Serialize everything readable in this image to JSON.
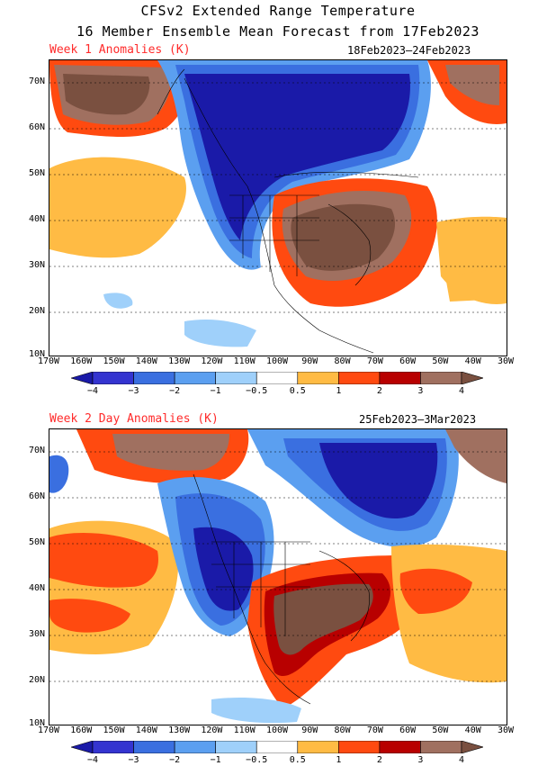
{
  "title": {
    "line1": "CFSv2 Extended Range Temperature",
    "line2": "16 Member Ensemble Mean Forecast from 17Feb2023"
  },
  "panels": [
    {
      "label": "Week 1 Anomalies (K)",
      "dates": "18Feb2023–24Feb2023"
    },
    {
      "label": "Week 2 Day Anomalies (K)",
      "dates": "25Feb2023–3Mar2023"
    }
  ],
  "lat_labels": [
    "70N",
    "60N",
    "50N",
    "40N",
    "30N",
    "20N",
    "10N"
  ],
  "lon_labels": [
    "170W",
    "160W",
    "150W",
    "140W",
    "130W",
    "120W",
    "110W",
    "100W",
    "90W",
    "80W",
    "70W",
    "60W",
    "50W",
    "40W",
    "30W"
  ],
  "colorbar": {
    "labels": [
      "−4",
      "−3",
      "−2",
      "−1",
      "−0.5",
      "0.5",
      "1",
      "2",
      "3",
      "4"
    ],
    "colors": [
      "#1a1aa8",
      "#3434d0",
      "#3a6fe0",
      "#5b9ff0",
      "#9fd0fa",
      "#ffffff",
      "#ffbb44",
      "#ff4a10",
      "#b80000",
      "#a07060",
      "#7a5040"
    ]
  },
  "legend_units": "K"
}
